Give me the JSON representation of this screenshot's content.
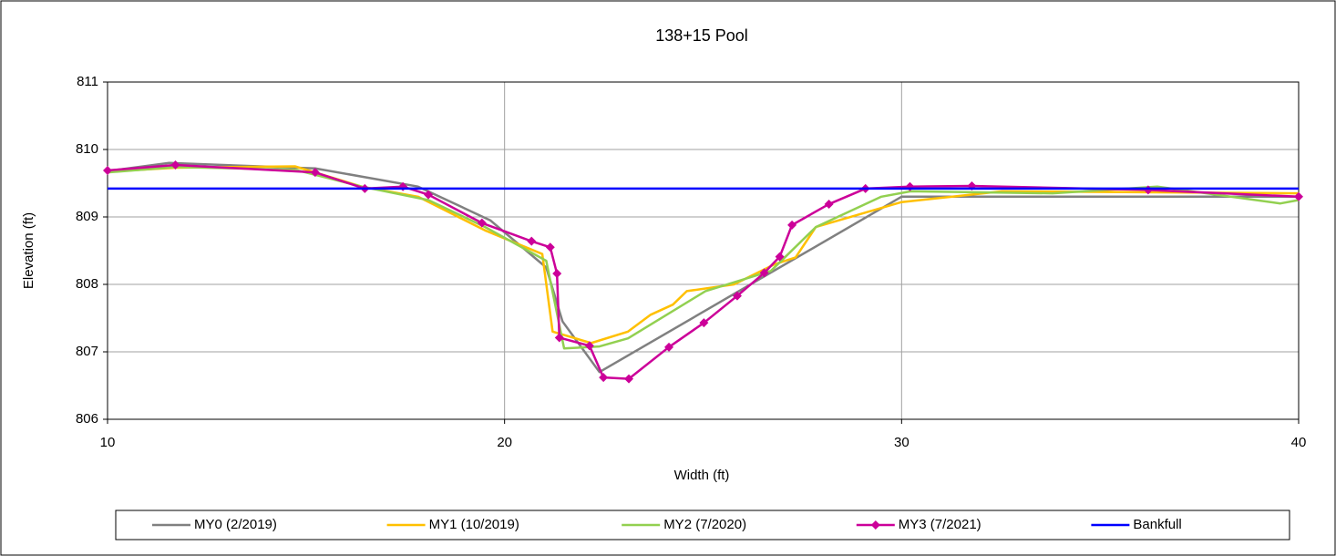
{
  "chart_data": {
    "type": "line",
    "title": "138+15 Pool",
    "x_label": "Width (ft)",
    "y_label": "Elevation (ft)",
    "xlim": [
      10,
      40
    ],
    "xticks": [
      10,
      20,
      30,
      40
    ],
    "ylim": [
      806,
      811
    ],
    "yticks": [
      806,
      807,
      808,
      809,
      810,
      811
    ],
    "grid": true,
    "legend": "bottom",
    "series": [
      {
        "name": "MY0 (2/2019)",
        "color": "#808080",
        "marker": "none",
        "x": [
          10,
          11.55,
          15.23,
          17.82,
          19.64,
          21.05,
          21.46,
          22.39,
          30,
          40
        ],
        "values": [
          809.68,
          809.8,
          809.72,
          809.45,
          808.95,
          808.25,
          807.45,
          806.7,
          809.3,
          809.3
        ]
      },
      {
        "name": "MY1 (10/2019)",
        "color": "#ffc000",
        "marker": "none",
        "x": [
          10,
          11.71,
          14.72,
          16.4,
          17.82,
          19.51,
          20.95,
          21.21,
          22.18,
          23.11,
          23.68,
          24.24,
          24.59,
          25.78,
          26.81,
          27.33,
          27.84,
          30,
          32.53,
          40
        ],
        "values": [
          809.67,
          809.73,
          809.75,
          809.45,
          809.3,
          808.8,
          808.45,
          807.3,
          807.13,
          807.3,
          807.55,
          807.7,
          807.9,
          808.0,
          808.3,
          808.4,
          808.85,
          809.22,
          809.38,
          809.35
        ]
      },
      {
        "name": "MY2 (7/2020)",
        "color": "#92d050",
        "marker": "none",
        "x": [
          10,
          11.71,
          14.72,
          16.4,
          18.08,
          19.51,
          21.05,
          21.5,
          22.39,
          23.11,
          25.06,
          26.71,
          27.84,
          29.49,
          30.23,
          33.8,
          36.44,
          39.54,
          40
        ],
        "values": [
          809.66,
          809.74,
          809.7,
          809.45,
          809.25,
          808.85,
          808.35,
          807.05,
          807.08,
          807.2,
          807.9,
          808.2,
          808.85,
          809.3,
          809.38,
          809.35,
          809.45,
          809.2,
          809.25
        ]
      },
      {
        "name": "MY3 (7/2021)",
        "color": "#cc0099",
        "marker": "diamond",
        "x": [
          10,
          11.71,
          15.23,
          16.48,
          17.44,
          18.08,
          19.43,
          20.68,
          21.15,
          21.32,
          21.38,
          22.14,
          22.49,
          23.13,
          24.14,
          25.02,
          25.86,
          26.54,
          26.93,
          27.24,
          28.17,
          29.09,
          30.21,
          31.77,
          36.21,
          40
        ],
        "values": [
          809.69,
          809.77,
          809.66,
          809.42,
          809.45,
          809.33,
          808.91,
          808.64,
          808.55,
          808.16,
          807.21,
          807.09,
          806.62,
          806.6,
          807.07,
          807.43,
          807.83,
          808.17,
          808.41,
          808.88,
          809.19,
          809.42,
          809.45,
          809.46,
          809.4,
          809.3
        ]
      },
      {
        "name": "Bankfull",
        "color": "#0000ff",
        "marker": "none",
        "x": [
          10,
          40
        ],
        "values": [
          809.42,
          809.42
        ]
      }
    ]
  }
}
